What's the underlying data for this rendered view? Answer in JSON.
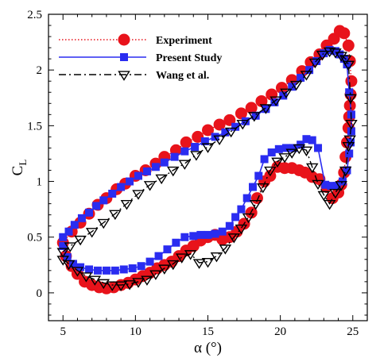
{
  "chart_data": {
    "type": "line",
    "xlabel": "α (°)",
    "ylabel": "C_L",
    "xlim": [
      4,
      26
    ],
    "ylim": [
      -0.25,
      2.5
    ],
    "x_ticks": [
      5,
      10,
      15,
      20,
      25
    ],
    "y_ticks": [
      0,
      0.5,
      1,
      1.5,
      2,
      2.5
    ],
    "x_tick_labels": [
      "5",
      "10",
      "15",
      "20",
      "25"
    ],
    "y_tick_labels": [
      "0",
      "0.5",
      "1",
      "1.5",
      "2",
      "2.5"
    ],
    "grid": false,
    "legend_position": "top-left",
    "series": [
      {
        "name": "Experiment",
        "color": "#e8131b",
        "line_style": "dotted",
        "marker": "circle",
        "x": [
          5.0,
          5.6,
          6.2,
          6.8,
          7.4,
          8.0,
          8.7,
          9.3,
          10.0,
          10.7,
          11.4,
          12.0,
          12.8,
          13.5,
          14.3,
          15.0,
          15.8,
          16.5,
          17.3,
          18.0,
          18.7,
          19.4,
          20.1,
          20.8,
          21.5,
          22.1,
          22.7,
          23.2,
          23.7,
          24.1,
          24.4,
          24.7,
          24.8,
          24.9,
          24.85,
          24.8,
          24.75,
          24.7,
          24.6,
          24.5,
          24.4,
          24.2,
          24.0,
          23.6,
          23.2,
          22.7,
          22.2,
          21.7,
          21.3,
          20.8,
          20.3,
          19.8,
          19.3,
          18.9,
          18.4,
          18.0,
          17.5,
          17.0,
          16.5,
          16.0,
          15.5,
          15.0,
          14.5,
          14.0,
          13.5,
          13.0,
          12.5,
          12.0,
          11.5,
          11.0,
          10.5,
          10.0,
          9.5,
          9.0,
          8.5,
          8.0,
          7.5,
          7.0,
          6.5,
          6.0,
          5.6,
          5.2
        ],
        "y": [
          0.45,
          0.55,
          0.63,
          0.71,
          0.79,
          0.85,
          0.93,
          0.98,
          1.05,
          1.1,
          1.16,
          1.22,
          1.28,
          1.35,
          1.4,
          1.46,
          1.51,
          1.55,
          1.61,
          1.66,
          1.72,
          1.78,
          1.84,
          1.91,
          1.99,
          2.07,
          2.14,
          2.22,
          2.28,
          2.35,
          2.33,
          2.22,
          2.08,
          1.9,
          1.78,
          1.68,
          1.58,
          1.48,
          1.35,
          1.22,
          1.08,
          0.97,
          0.9,
          0.85,
          0.95,
          1.02,
          1.04,
          1.08,
          1.1,
          1.12,
          1.12,
          1.13,
          1.05,
          1.0,
          0.85,
          0.72,
          0.62,
          0.55,
          0.5,
          0.48,
          0.52,
          0.5,
          0.47,
          0.42,
          0.38,
          0.33,
          0.28,
          0.25,
          0.22,
          0.18,
          0.15,
          0.12,
          0.09,
          0.07,
          0.05,
          0.04,
          0.05,
          0.07,
          0.1,
          0.17,
          0.24,
          0.33
        ]
      },
      {
        "name": "Present Study",
        "color": "#2a2cf0",
        "line_style": "solid",
        "marker": "square",
        "x": [
          5.0,
          5.4,
          5.8,
          6.3,
          6.8,
          7.3,
          7.8,
          8.4,
          9.0,
          9.6,
          10.2,
          10.8,
          11.4,
          12.0,
          12.7,
          13.4,
          14.1,
          14.8,
          15.5,
          16.2,
          16.9,
          17.6,
          18.3,
          19.0,
          19.6,
          20.2,
          20.8,
          21.4,
          22.0,
          22.5,
          23.0,
          23.4,
          23.8,
          24.1,
          24.4,
          24.6,
          24.75,
          24.9,
          24.9,
          24.85,
          24.75,
          24.6,
          24.3,
          23.9,
          23.5,
          23.1,
          22.6,
          22.2,
          21.8,
          21.4,
          20.9,
          20.4,
          19.9,
          19.4,
          18.9,
          18.5,
          18.1,
          17.7,
          17.3,
          16.9,
          16.5,
          16.0,
          15.5,
          15.0,
          14.5,
          14.0,
          13.4,
          12.8,
          12.2,
          11.6,
          11.0,
          10.4,
          9.8,
          9.2,
          8.6,
          8.0,
          7.4,
          6.8,
          6.2,
          5.7,
          5.3,
          5.0
        ],
        "y": [
          0.5,
          0.55,
          0.61,
          0.67,
          0.72,
          0.78,
          0.83,
          0.89,
          0.95,
          1.0,
          1.05,
          1.09,
          1.13,
          1.17,
          1.22,
          1.27,
          1.31,
          1.36,
          1.4,
          1.44,
          1.49,
          1.54,
          1.59,
          1.65,
          1.71,
          1.77,
          1.85,
          1.93,
          2.0,
          2.08,
          2.15,
          2.18,
          2.17,
          2.14,
          2.1,
          2.05,
          1.8,
          1.6,
          1.45,
          1.35,
          1.25,
          1.1,
          1.0,
          0.96,
          0.96,
          0.97,
          1.3,
          1.37,
          1.38,
          1.33,
          1.3,
          1.3,
          1.29,
          1.26,
          1.2,
          1.05,
          0.95,
          0.85,
          0.75,
          0.68,
          0.6,
          0.55,
          0.53,
          0.52,
          0.52,
          0.51,
          0.5,
          0.45,
          0.39,
          0.33,
          0.28,
          0.24,
          0.22,
          0.21,
          0.2,
          0.2,
          0.2,
          0.21,
          0.23,
          0.26,
          0.32,
          0.42
        ]
      },
      {
        "name": "Wang et al.",
        "color": "#000000",
        "line_style": "dashdot",
        "marker": "triangle-down",
        "x": [
          5.0,
          5.5,
          6.2,
          7.0,
          7.8,
          8.6,
          9.4,
          10.2,
          11.0,
          11.8,
          12.6,
          13.4,
          14.2,
          15.0,
          15.8,
          16.6,
          17.4,
          18.2,
          19.0,
          19.7,
          20.4,
          21.1,
          21.8,
          22.4,
          22.9,
          23.4,
          23.8,
          24.2,
          24.5,
          24.7,
          24.85,
          24.9,
          24.8,
          24.7,
          24.5,
          24.2,
          23.8,
          23.4,
          23.0,
          22.6,
          22.2,
          21.8,
          21.3,
          20.8,
          20.3,
          19.8,
          19.3,
          18.8,
          18.3,
          17.8,
          17.3,
          16.8,
          16.2,
          15.6,
          15.0,
          14.4,
          13.8,
          13.2,
          12.6,
          12.0,
          11.4,
          10.8,
          10.2,
          9.6,
          9.0,
          8.4,
          7.8,
          7.2,
          6.6,
          6.0,
          5.4,
          5.0
        ],
        "y": [
          0.37,
          0.42,
          0.48,
          0.55,
          0.63,
          0.71,
          0.8,
          0.89,
          0.97,
          1.03,
          1.1,
          1.16,
          1.24,
          1.31,
          1.38,
          1.45,
          1.52,
          1.59,
          1.66,
          1.73,
          1.8,
          1.87,
          1.96,
          2.07,
          2.14,
          2.17,
          2.16,
          2.13,
          2.1,
          2.05,
          1.75,
          1.52,
          1.38,
          1.32,
          1.1,
          0.97,
          0.9,
          0.8,
          0.88,
          0.98,
          1.13,
          1.28,
          1.3,
          1.26,
          1.22,
          1.18,
          1.1,
          0.95,
          0.8,
          0.68,
          0.58,
          0.5,
          0.4,
          0.33,
          0.28,
          0.27,
          0.35,
          0.32,
          0.26,
          0.22,
          0.17,
          0.12,
          0.1,
          0.08,
          0.07,
          0.07,
          0.09,
          0.12,
          0.15,
          0.2,
          0.26,
          0.3
        ]
      }
    ]
  }
}
